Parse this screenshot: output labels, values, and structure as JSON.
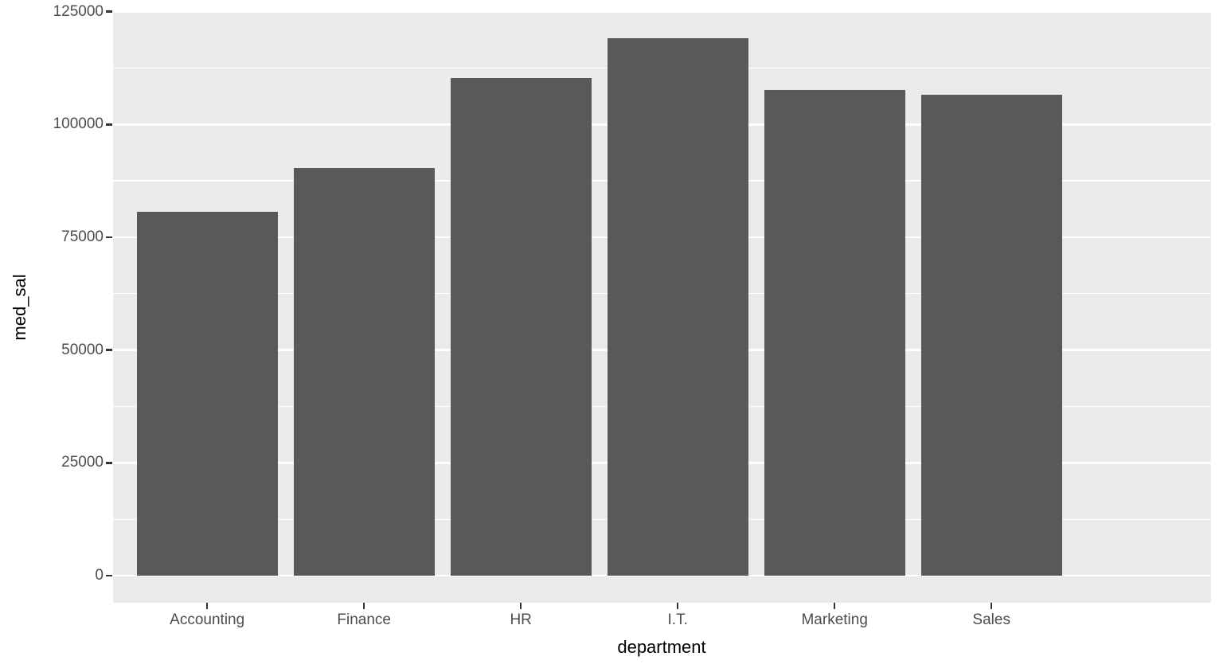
{
  "chart_data": {
    "type": "bar",
    "title": "",
    "xlabel": "department",
    "ylabel": "med_sal",
    "categories": [
      "Accounting",
      "Finance",
      "HR",
      "I.T.",
      "Marketing",
      "Sales"
    ],
    "values": [
      80600,
      90300,
      110300,
      119100,
      107600,
      106600
    ],
    "yticks": [
      0,
      25000,
      50000,
      75000,
      100000,
      125000
    ],
    "ytick_labels": [
      "0",
      "25000",
      "50000",
      "75000",
      "100000",
      "125000"
    ],
    "yminor_ticks": [
      12500,
      37500,
      62500,
      87500,
      112500
    ],
    "ylim": [
      0,
      125000
    ],
    "xlim_note": "discrete axis, 6 categories",
    "grid": "white major and minor horizontal gridlines on grey panel",
    "legend": "none",
    "style": {
      "bar_fill": "#595959",
      "panel_bg": "#EBEBEB",
      "page_bg": "#FFFFFF",
      "grid_color": "#FFFFFF",
      "tick_color": "#333333",
      "tick_label_color": "#4D4D4D",
      "axis_title_color": "#000000"
    }
  }
}
